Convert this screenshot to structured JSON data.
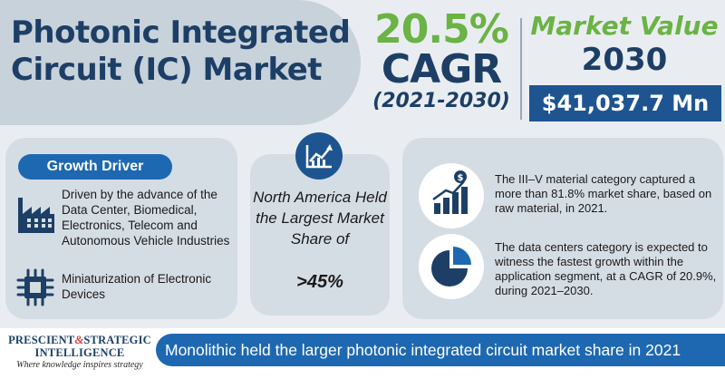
{
  "title": {
    "line1": "Photonic Integrated",
    "line2": "Circuit (IC) Market"
  },
  "cagr": {
    "percent": "20.5%",
    "label": "CAGR",
    "years": "(2021-2030)"
  },
  "market_value": {
    "label": "Market Value",
    "year": "2030",
    "value": "$41,037.7 Mn"
  },
  "growth_driver": {
    "heading": "Growth Driver",
    "items": [
      {
        "text": "Driven by the advance of the Data Center, Biomedical, Electronics, Telecom and Autonomous Vehicle Industries",
        "icon": "factory-icon"
      },
      {
        "text": "Miniaturization of Electronic Devices",
        "icon": "microchip-icon"
      }
    ]
  },
  "north_america": {
    "text": "North America Held the Largest Market Share of",
    "value": ">45%",
    "icon": "growth-chart-icon"
  },
  "insights": [
    {
      "text": "The III–V material  category captured a more than 81.8% market share, based on raw material, in 2021.",
      "icon": "money-bar-chart-icon"
    },
    {
      "text": "The data centers category is expected to witness the fastest growth within the application segment, at a CAGR of 20.9%, during 2021–2030.",
      "icon": "pie-chart-icon"
    }
  ],
  "logo": {
    "line1a": "PRESCIENT",
    "amp": "&",
    "line1b": "STRATEGIC",
    "line2": "INTELLIGENCE",
    "tagline": "Where knowledge inspires strategy"
  },
  "footer": {
    "text": "Monolithic held the larger photonic integrated circuit market share in 2021"
  },
  "colors": {
    "navy": "#1d3f66",
    "green": "#6ab344",
    "blue": "#1e68b1",
    "dark_blue": "#1e5591"
  }
}
